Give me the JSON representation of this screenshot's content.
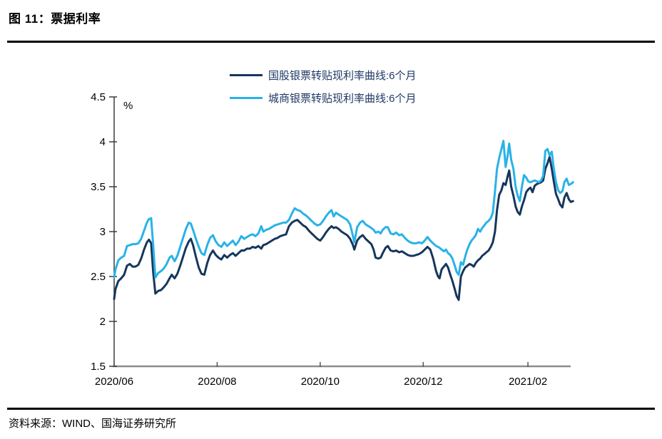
{
  "figure": {
    "title": "图 11：票据利率",
    "source": "资料来源：WIND、国海证券研究所"
  },
  "chart_data": {
    "type": "line",
    "unit_label": "%",
    "legend_position": "top-center",
    "grid": false,
    "x_axis": {
      "ticks": [
        {
          "label": "2020/06",
          "day": 0
        },
        {
          "label": "2020/08",
          "day": 61
        },
        {
          "label": "2020/10",
          "day": 122
        },
        {
          "label": "2020/12",
          "day": 183
        },
        {
          "label": "2021/02",
          "day": 245
        }
      ],
      "range_days": [
        0,
        272
      ]
    },
    "y_axis": {
      "min": 1.5,
      "max": 4.5,
      "ticks": [
        4.5,
        4,
        3.5,
        3,
        2.5,
        2,
        1.5
      ]
    },
    "x_days": [
      0,
      0.8,
      2.5,
      4.2,
      5.9,
      7.6,
      9.3,
      10.9,
      12.6,
      14.3,
      16,
      17.7,
      19.4,
      20.6,
      21.9,
      23.1,
      24.4,
      26.1,
      27.8,
      29.4,
      31.1,
      32.8,
      34.1,
      35.8,
      37.4,
      39.1,
      40.8,
      42.5,
      44.2,
      45.4,
      46.7,
      48.4,
      50.1,
      51.7,
      53.4,
      55.1,
      56.8,
      58.5,
      60.2,
      61.8,
      63.5,
      65.2,
      66.9,
      68.6,
      70.3,
      71.9,
      73.6,
      75.3,
      77,
      78.7,
      80.4,
      82,
      83.7,
      85.4,
      87.1,
      88.3,
      90,
      91.7,
      93.4,
      95.1,
      96.8,
      98.4,
      100.1,
      101.8,
      103.5,
      105.2,
      106.9,
      108.5,
      110.2,
      111.9,
      113.6,
      115.3,
      116.9,
      118.6,
      120.3,
      122,
      123.7,
      125.4,
      127.1,
      128.7,
      130,
      131.3,
      132.9,
      134.6,
      136.3,
      138,
      139.7,
      141.4,
      142.2,
      143.9,
      145.6,
      147.2,
      148.9,
      150.6,
      152.3,
      153.6,
      154.8,
      156.5,
      157.8,
      159,
      160.7,
      162,
      163.7,
      165.3,
      167,
      168.7,
      170.4,
      172.1,
      173.8,
      175.4,
      177.1,
      178.8,
      180.5,
      182.2,
      183.9,
      185.5,
      187.2,
      188.9,
      190.6,
      191.8,
      192.7,
      193.9,
      195.2,
      196.5,
      197.7,
      199,
      200.3,
      201.5,
      202.8,
      204,
      205.3,
      206.6,
      207.8,
      209.1,
      210.4,
      211.6,
      212.9,
      214.1,
      215.4,
      216.7,
      217.9,
      219.2,
      220.4,
      221.7,
      223,
      224.2,
      225.5,
      226.7,
      228,
      229.3,
      230.5,
      231.8,
      233,
      233.9,
      235.1,
      236.4,
      237.7,
      238.9,
      240.2,
      241.4,
      242.7,
      244,
      245.2,
      246.5,
      247.7,
      249,
      250.3,
      251.5,
      252.8,
      254,
      255.3,
      256.6,
      257.8,
      259.1,
      260.3,
      261.6,
      262.9,
      264.1,
      265.4,
      266.6,
      267.9,
      269.2,
      270.4,
      271.7
    ],
    "series": [
      {
        "name": "国股银票转贴现利率曲线:6个月",
        "color": "#16365c",
        "values": [
          2.25,
          2.36,
          2.45,
          2.48,
          2.52,
          2.62,
          2.64,
          2.61,
          2.61,
          2.63,
          2.7,
          2.8,
          2.88,
          2.91,
          2.87,
          2.55,
          2.31,
          2.34,
          2.35,
          2.38,
          2.42,
          2.48,
          2.52,
          2.48,
          2.53,
          2.62,
          2.72,
          2.82,
          2.89,
          2.92,
          2.85,
          2.72,
          2.6,
          2.53,
          2.52,
          2.65,
          2.74,
          2.79,
          2.74,
          2.71,
          2.69,
          2.74,
          2.71,
          2.74,
          2.76,
          2.73,
          2.76,
          2.79,
          2.79,
          2.81,
          2.81,
          2.83,
          2.82,
          2.84,
          2.81,
          2.85,
          2.86,
          2.88,
          2.9,
          2.92,
          2.93,
          2.95,
          2.96,
          2.97,
          3.06,
          3.1,
          3.12,
          3.13,
          3.1,
          3.07,
          3.05,
          3.01,
          2.98,
          2.95,
          2.92,
          2.9,
          2.94,
          2.99,
          3.03,
          3.06,
          3.04,
          3.05,
          3.03,
          3.0,
          2.98,
          2.96,
          2.92,
          2.85,
          2.8,
          2.9,
          2.94,
          2.96,
          2.92,
          2.89,
          2.86,
          2.8,
          2.71,
          2.7,
          2.71,
          2.76,
          2.82,
          2.84,
          2.79,
          2.78,
          2.79,
          2.77,
          2.78,
          2.76,
          2.74,
          2.73,
          2.73,
          2.74,
          2.75,
          2.77,
          2.8,
          2.83,
          2.8,
          2.7,
          2.56,
          2.5,
          2.48,
          2.58,
          2.61,
          2.64,
          2.6,
          2.52,
          2.45,
          2.37,
          2.28,
          2.24,
          2.5,
          2.56,
          2.6,
          2.62,
          2.64,
          2.63,
          2.61,
          2.65,
          2.68,
          2.7,
          2.73,
          2.75,
          2.77,
          2.79,
          2.83,
          2.88,
          3.0,
          3.24,
          3.41,
          3.46,
          3.54,
          3.52,
          3.62,
          3.68,
          3.5,
          3.4,
          3.28,
          3.22,
          3.19,
          3.28,
          3.35,
          3.44,
          3.47,
          3.49,
          3.44,
          3.51,
          3.53,
          3.54,
          3.55,
          3.57,
          3.7,
          3.76,
          3.83,
          3.7,
          3.56,
          3.42,
          3.36,
          3.3,
          3.27,
          3.38,
          3.43,
          3.36,
          3.33,
          3.34
        ]
      },
      {
        "name": "城商银票转贴现利率曲线:6个月",
        "color": "#29b2e8",
        "values": [
          2.49,
          2.58,
          2.68,
          2.71,
          2.73,
          2.84,
          2.85,
          2.86,
          2.86,
          2.87,
          2.92,
          3.01,
          3.1,
          3.14,
          3.15,
          2.85,
          2.49,
          2.54,
          2.56,
          2.59,
          2.64,
          2.71,
          2.73,
          2.67,
          2.73,
          2.83,
          2.93,
          3.03,
          3.1,
          3.09,
          3.02,
          2.92,
          2.83,
          2.76,
          2.74,
          2.85,
          2.93,
          2.96,
          2.89,
          2.85,
          2.83,
          2.88,
          2.84,
          2.87,
          2.9,
          2.85,
          2.89,
          2.95,
          2.92,
          2.94,
          2.96,
          2.97,
          2.95,
          2.98,
          3.06,
          3.0,
          3.02,
          3.03,
          3.05,
          3.07,
          3.08,
          3.09,
          3.1,
          3.1,
          3.13,
          3.2,
          3.26,
          3.24,
          3.23,
          3.2,
          3.18,
          3.15,
          3.12,
          3.09,
          3.07,
          3.08,
          3.12,
          3.17,
          3.21,
          3.24,
          3.17,
          3.21,
          3.19,
          3.17,
          3.15,
          3.13,
          3.08,
          2.95,
          2.88,
          3.05,
          3.1,
          3.12,
          3.08,
          3.06,
          3.04,
          3.02,
          2.99,
          3.0,
          2.98,
          3.02,
          3.05,
          3.05,
          2.98,
          2.97,
          2.99,
          2.96,
          2.97,
          2.93,
          2.9,
          2.88,
          2.87,
          2.87,
          2.88,
          2.87,
          2.9,
          2.94,
          2.9,
          2.87,
          2.84,
          2.83,
          2.82,
          2.8,
          2.78,
          2.8,
          2.76,
          2.74,
          2.7,
          2.63,
          2.55,
          2.52,
          2.66,
          2.63,
          2.72,
          2.8,
          2.86,
          2.9,
          2.93,
          2.96,
          3.03,
          3.0,
          3.04,
          3.07,
          3.1,
          3.12,
          3.15,
          3.21,
          3.45,
          3.7,
          3.82,
          3.92,
          4.01,
          3.72,
          3.85,
          3.98,
          3.8,
          3.7,
          3.5,
          3.4,
          3.34,
          3.5,
          3.63,
          3.6,
          3.56,
          3.55,
          3.56,
          3.57,
          3.56,
          3.55,
          3.57,
          3.62,
          3.9,
          3.92,
          3.85,
          3.89,
          3.7,
          3.55,
          3.46,
          3.43,
          3.45,
          3.55,
          3.59,
          3.52,
          3.53,
          3.55
        ]
      }
    ]
  }
}
